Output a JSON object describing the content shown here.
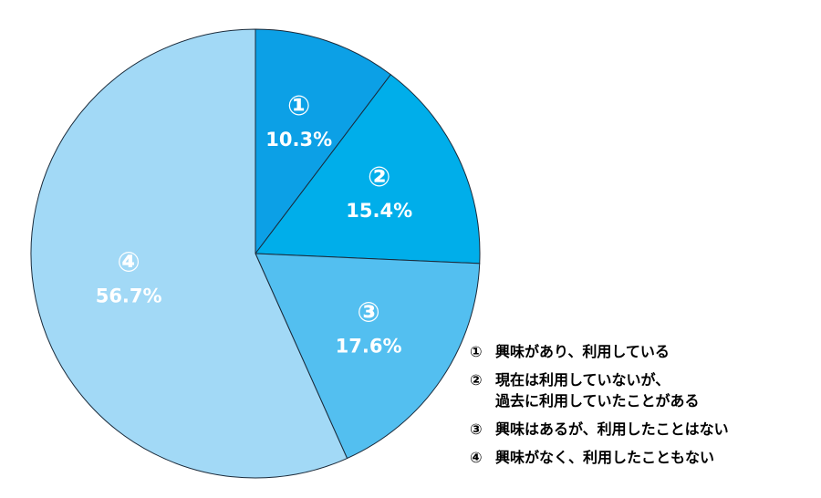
{
  "chart_data": {
    "type": "pie",
    "start": "top",
    "direction": "clockwise",
    "slices": [
      {
        "num": "①",
        "label": "興味があり、利用している",
        "value": 10.3,
        "value_label": "10.3%",
        "color": "#0ca0e6"
      },
      {
        "num": "②",
        "label": "現在は利用していないが、\n過去に利用していたことがある",
        "value": 15.4,
        "value_label": "15.4%",
        "color": "#00aeea"
      },
      {
        "num": "③",
        "label": "興味はあるが、利用したことはない",
        "value": 17.6,
        "value_label": "17.6%",
        "color": "#53bff0"
      },
      {
        "num": "④",
        "label": "興味がなく、利用したこともない",
        "value": 56.7,
        "value_label": "56.7%",
        "color": "#a2d9f6"
      }
    ]
  }
}
